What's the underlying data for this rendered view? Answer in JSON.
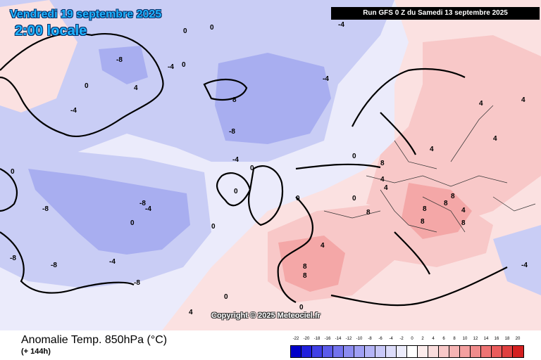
{
  "header": {
    "date_text": "Vendredi 19 septembre 2025",
    "time_text": "2:00 locale",
    "run_text": "Run GFS 0 Z du Samedi 13 septembre 2025"
  },
  "map": {
    "copyright": "Copyright © 2025 Meteociel.fr",
    "contour_labels": [
      "0",
      "-4",
      "-8",
      "4",
      "8",
      "-8",
      "-8",
      "-4",
      "0",
      "-4",
      "-8",
      "-4",
      "-8",
      "-8",
      "-8",
      "0",
      "0",
      "-4",
      "0",
      "4",
      "8",
      "8",
      "4",
      "8",
      "8",
      "4",
      "8",
      "4",
      "8",
      "0",
      "0",
      "0",
      "-4",
      "4",
      "4",
      "8",
      "4",
      "8",
      "8",
      "4",
      "-4",
      "0",
      "4",
      "0",
      "-4",
      "0",
      "0",
      "0",
      "0"
    ]
  },
  "footer": {
    "variable_title": "Anomalie Temp. 850hPa (°C)",
    "lead_time": "(+ 144h)"
  },
  "legend": {
    "labels": [
      "-22",
      "-20",
      "-18",
      "-16",
      "-14",
      "-12",
      "-10",
      "-8",
      "-6",
      "-4",
      "-2",
      "0",
      "2",
      "4",
      "6",
      "8",
      "10",
      "12",
      "14",
      "16",
      "18",
      "20"
    ],
    "colors": [
      "#0000c8",
      "#2020dc",
      "#4040e6",
      "#5c5cea",
      "#7474ee",
      "#8c8cf0",
      "#a0a0f4",
      "#b4b4f6",
      "#c8c8f8",
      "#dcdcfa",
      "#ececfc",
      "#ffffff",
      "#fcecec",
      "#fadcdc",
      "#f8c8c8",
      "#f6b4b4",
      "#f4a0a0",
      "#f08c8c",
      "#ee7474",
      "#ea5c5c",
      "#e04040",
      "#d42020"
    ],
    "map_colors": {
      "cold_mid": "#c9cdf5",
      "cold_strong": "#a8aef0",
      "neutral": "#ebebfb",
      "warm_light": "#fbe1e1",
      "warm_mid": "#f8c8c8",
      "warm_strong": "#f4a7a7",
      "coast": "#000000",
      "border": "#333333"
    }
  }
}
